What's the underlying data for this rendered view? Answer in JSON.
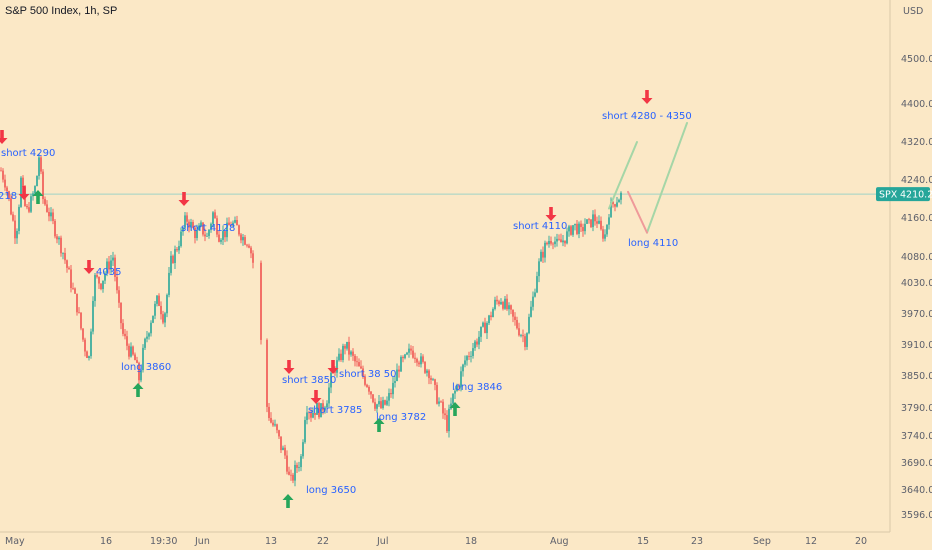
{
  "title": "S&P 500 Index, 1h, SP",
  "chart_data": {
    "type": "candlestick",
    "currency": "USD",
    "y_ticks": [
      {
        "value": 4500,
        "label": "4500.00"
      },
      {
        "value": 4400,
        "label": "4400.00"
      },
      {
        "value": 4320,
        "label": "4320.00"
      },
      {
        "value": 4240,
        "label": "4240.00"
      },
      {
        "value": 4160,
        "label": "4160.00"
      },
      {
        "value": 4080,
        "label": "4080.00"
      },
      {
        "value": 4030,
        "label": "4030.00"
      },
      {
        "value": 3970,
        "label": "3970.00"
      },
      {
        "value": 3910,
        "label": "3910.00"
      },
      {
        "value": 3850,
        "label": "3850.00"
      },
      {
        "value": 3790,
        "label": "3790.00"
      },
      {
        "value": 3740,
        "label": "3740.00"
      },
      {
        "value": 3690,
        "label": "3690.00"
      },
      {
        "value": 3640,
        "label": "3640.00"
      },
      {
        "value": 3596,
        "label": "3596.00"
      }
    ],
    "x_ticks": [
      {
        "label": "May",
        "index": 0
      },
      {
        "label": "16",
        "index": 95
      },
      {
        "label": "19:30",
        "index": 145
      },
      {
        "label": "Jun",
        "index": 190
      },
      {
        "label": "13",
        "index": 260
      },
      {
        "label": "22",
        "index": 312
      },
      {
        "label": "Jul",
        "index": 372
      },
      {
        "label": "18",
        "index": 460
      },
      {
        "label": "Aug",
        "index": 545
      },
      {
        "label": "15",
        "index": 632
      },
      {
        "label": "23",
        "index": 686
      },
      {
        "label": "Sep",
        "index": 748
      },
      {
        "label": "12",
        "index": 800
      },
      {
        "label": "20",
        "index": 850
      }
    ],
    "last_price": {
      "symbol": "SPX",
      "value": "4210.23",
      "price": 4210.23
    },
    "price_path": [
      [
        0,
        4260
      ],
      [
        5,
        4230
      ],
      [
        10,
        4175
      ],
      [
        15,
        4120
      ],
      [
        20,
        4240
      ],
      [
        25,
        4170
      ],
      [
        30,
        4195
      ],
      [
        35,
        4230
      ],
      [
        38,
        4290
      ],
      [
        42,
        4200
      ],
      [
        48,
        4170
      ],
      [
        55,
        4130
      ],
      [
        62,
        4090
      ],
      [
        70,
        4030
      ],
      [
        76,
        3985
      ],
      [
        83,
        3910
      ],
      [
        88,
        3885
      ],
      [
        93,
        4040
      ],
      [
        100,
        4030
      ],
      [
        106,
        4060
      ],
      [
        112,
        4080
      ],
      [
        117,
        3990
      ],
      [
        122,
        3930
      ],
      [
        128,
        3900
      ],
      [
        134,
        3880
      ],
      [
        138,
        3845
      ],
      [
        143,
        3905
      ],
      [
        150,
        3960
      ],
      [
        157,
        4000
      ],
      [
        163,
        3960
      ],
      [
        170,
        4070
      ],
      [
        176,
        4100
      ],
      [
        181,
        4130
      ],
      [
        185,
        4160
      ],
      [
        190,
        4145
      ],
      [
        195,
        4125
      ],
      [
        200,
        4140
      ],
      [
        206,
        4120
      ],
      [
        212,
        4170
      ],
      [
        218,
        4125
      ],
      [
        224,
        4130
      ],
      [
        230,
        4150
      ],
      [
        236,
        4140
      ],
      [
        242,
        4120
      ],
      [
        248,
        4110
      ],
      [
        252,
        4070
      ],
      [
        256,
        4030
      ],
      [
        258,
        3920
      ],
      [
        262,
        3910
      ],
      [
        265,
        3800
      ],
      [
        270,
        3765
      ],
      [
        275,
        3750
      ],
      [
        280,
        3720
      ],
      [
        285,
        3700
      ],
      [
        289,
        3650
      ],
      [
        294,
        3675
      ],
      [
        300,
        3700
      ],
      [
        305,
        3800
      ],
      [
        310,
        3780
      ],
      [
        315,
        3790
      ],
      [
        320,
        3785
      ],
      [
        326,
        3810
      ],
      [
        332,
        3860
      ],
      [
        338,
        3880
      ],
      [
        344,
        3910
      ],
      [
        350,
        3890
      ],
      [
        356,
        3870
      ],
      [
        362,
        3850
      ],
      [
        368,
        3830
      ],
      [
        374,
        3800
      ],
      [
        380,
        3790
      ],
      [
        386,
        3800
      ],
      [
        392,
        3830
      ],
      [
        398,
        3870
      ],
      [
        404,
        3880
      ],
      [
        410,
        3900
      ],
      [
        416,
        3890
      ],
      [
        422,
        3870
      ],
      [
        428,
        3860
      ],
      [
        434,
        3820
      ],
      [
        440,
        3790
      ],
      [
        446,
        3760
      ],
      [
        452,
        3810
      ],
      [
        458,
        3840
      ],
      [
        464,
        3880
      ],
      [
        470,
        3900
      ],
      [
        476,
        3920
      ],
      [
        482,
        3940
      ],
      [
        488,
        3960
      ],
      [
        494,
        3990
      ],
      [
        500,
        4000
      ],
      [
        506,
        3980
      ],
      [
        512,
        3960
      ],
      [
        518,
        3940
      ],
      [
        524,
        3920
      ],
      [
        528,
        3960
      ],
      [
        532,
        4000
      ],
      [
        536,
        4050
      ],
      [
        540,
        4080
      ],
      [
        544,
        4100
      ],
      [
        548,
        4115
      ],
      [
        552,
        4120
      ],
      [
        556,
        4105
      ],
      [
        560,
        4110
      ],
      [
        564,
        4120
      ],
      [
        568,
        4130
      ],
      [
        572,
        4145
      ],
      [
        576,
        4140
      ],
      [
        580,
        4130
      ],
      [
        584,
        4150
      ],
      [
        588,
        4145
      ],
      [
        592,
        4160
      ],
      [
        596,
        4155
      ],
      [
        600,
        4130
      ],
      [
        604,
        4125
      ],
      [
        608,
        4175
      ],
      [
        612,
        4190
      ],
      [
        616,
        4200
      ],
      [
        620,
        4208
      ]
    ],
    "projection": {
      "down_leg": [
        [
          627,
          4215
        ],
        [
          646,
          4130
        ]
      ],
      "up_leg_1": [
        [
          608,
          4180
        ],
        [
          636,
          4320
        ]
      ],
      "up_leg_2": [
        [
          646,
          4130
        ],
        [
          686,
          4360
        ]
      ]
    },
    "annotations": [
      {
        "text": "short 4290",
        "type": "short",
        "index": 2,
        "price": 4290
      },
      {
        "text": "218",
        "type": "label",
        "index": 0,
        "price": 4218
      },
      {
        "text": "4035",
        "type": "short",
        "index": 91,
        "price": 4035
      },
      {
        "text": "long  3860",
        "type": "long",
        "index": 137,
        "price": 3860
      },
      {
        "text": "short  4128",
        "type": "short",
        "index": 184,
        "price": 4128
      },
      {
        "text": "short  3850",
        "type": "short",
        "index": 289,
        "price": 3850
      },
      {
        "text": "short  3785",
        "type": "short",
        "index": 316,
        "price": 3785
      },
      {
        "text": "short  38 50",
        "type": "short",
        "index": 333,
        "price": 3850
      },
      {
        "text": "long  3782",
        "type": "long",
        "index": 379,
        "price": 3782
      },
      {
        "text": "long  3846",
        "type": "long",
        "index": 455,
        "price": 3846
      },
      {
        "text": "long  3650",
        "type": "long",
        "index": 288,
        "price": 3650
      },
      {
        "text": "short  4110",
        "type": "short",
        "index": 551,
        "price": 4110
      },
      {
        "text": "short  4280 - 4350",
        "type": "short",
        "index": 647,
        "price": 4350
      },
      {
        "text": "long 4110",
        "type": "long",
        "index": 645,
        "price": 4110
      }
    ],
    "colors": {
      "background": "#fbe8c6",
      "up": "#26a69a",
      "down": "#ef5350",
      "arrow_up": "#26a65b",
      "arrow_down": "#f23645",
      "annotation_text": "#2962ff",
      "price_line": "#9fd3c7",
      "price_tag": "#26a69a",
      "proj_green": "#a5d6a7",
      "proj_red": "#ef9a9a"
    }
  }
}
